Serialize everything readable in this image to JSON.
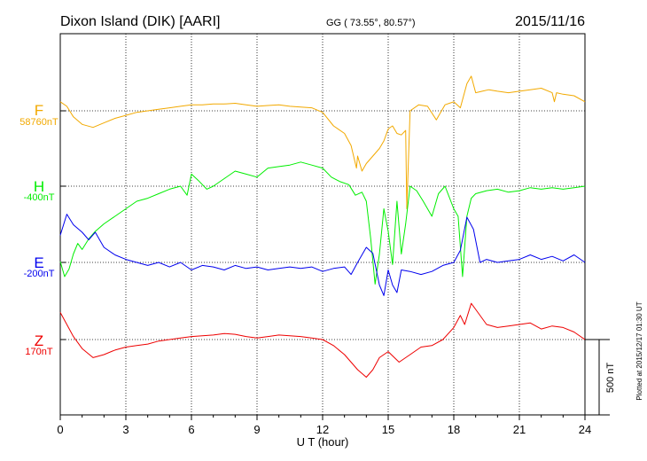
{
  "chart_data": {
    "type": "line",
    "title": "Dixon Island (DIK)  [AARI]",
    "coords": "GG ( 73.55°,  80.57°)",
    "date": "2015/11/16",
    "xlabel": "U T (hour)",
    "xlim": [
      0,
      24
    ],
    "xticks": [
      "0",
      "3",
      "6",
      "9",
      "12",
      "15",
      "18",
      "21",
      "24"
    ],
    "scale_label": "500 nT",
    "scale_nT": 500,
    "plotted_note": "Plotted at 2015/12/17 01:30 UT",
    "series": [
      {
        "name": "F",
        "baseline": "58760nT",
        "color": "#f2a900",
        "x": [
          0,
          0.3,
          0.6,
          1.0,
          1.5,
          2.0,
          2.5,
          3.0,
          3.5,
          4.0,
          4.5,
          5.0,
          5.5,
          6.0,
          6.5,
          7.0,
          7.5,
          8.0,
          8.5,
          9.0,
          9.5,
          10.0,
          10.5,
          11.0,
          11.5,
          12.0,
          12.5,
          13.0,
          13.3,
          13.55,
          13.6,
          13.8,
          14.0,
          14.3,
          14.6,
          14.8,
          15.0,
          15.2,
          15.4,
          15.6,
          15.8,
          15.85,
          16.0,
          16.4,
          16.8,
          17.2,
          17.6,
          18.0,
          18.3,
          18.6,
          18.8,
          19.0,
          19.3,
          19.6,
          20.0,
          20.5,
          21.0,
          21.5,
          22.0,
          22.5,
          22.6,
          22.7,
          23.0,
          23.5,
          24.0
        ],
        "y": [
          60,
          30,
          -40,
          -90,
          -110,
          -80,
          -50,
          -30,
          -10,
          0,
          10,
          20,
          30,
          40,
          40,
          45,
          45,
          50,
          40,
          30,
          35,
          40,
          30,
          25,
          20,
          -10,
          -100,
          -150,
          -230,
          -380,
          -300,
          -400,
          -350,
          -300,
          -250,
          -200,
          -120,
          -100,
          -150,
          -160,
          -130,
          -650,
          0,
          40,
          30,
          -60,
          40,
          60,
          20,
          180,
          230,
          120,
          130,
          140,
          130,
          120,
          130,
          140,
          150,
          120,
          60,
          120,
          110,
          100,
          60
        ]
      },
      {
        "name": "H",
        "baseline": "-400nT",
        "color": "#00ee00",
        "x": [
          0,
          0.2,
          0.4,
          0.6,
          0.8,
          1.0,
          1.3,
          1.6,
          2.0,
          2.5,
          3.0,
          3.5,
          4.0,
          4.5,
          5.0,
          5.5,
          5.8,
          6.0,
          6.3,
          6.7,
          7.0,
          7.5,
          8.0,
          8.5,
          9.0,
          9.5,
          10.0,
          10.5,
          11.0,
          11.5,
          12.0,
          12.4,
          12.8,
          13.2,
          13.5,
          13.8,
          14.0,
          14.2,
          14.4,
          14.6,
          14.8,
          15.0,
          15.2,
          15.4,
          15.6,
          15.8,
          16.0,
          16.3,
          16.6,
          17.0,
          17.3,
          17.6,
          18.0,
          18.2,
          18.4,
          18.6,
          18.8,
          19.0,
          19.5,
          20.0,
          20.5,
          21.0,
          21.5,
          22.0,
          22.5,
          23.0,
          23.5,
          24.0
        ],
        "y": [
          -500,
          -600,
          -550,
          -450,
          -380,
          -420,
          -350,
          -300,
          -250,
          -200,
          -150,
          -100,
          -80,
          -50,
          -20,
          0,
          -60,
          80,
          40,
          -20,
          0,
          50,
          100,
          80,
          60,
          120,
          130,
          140,
          160,
          140,
          120,
          60,
          30,
          10,
          -60,
          -40,
          -100,
          -350,
          -650,
          -450,
          -150,
          -300,
          -520,
          -100,
          -450,
          -250,
          0,
          -30,
          -100,
          -200,
          -50,
          0,
          -150,
          -200,
          -600,
          -200,
          -80,
          -50,
          -30,
          -20,
          -40,
          -30,
          -10,
          -20,
          -10,
          -20,
          -10,
          0
        ]
      },
      {
        "name": "E",
        "baseline": "-200nT",
        "color": "#0000ee",
        "x": [
          0,
          0.3,
          0.6,
          1.0,
          1.3,
          1.6,
          2.0,
          2.5,
          3.0,
          3.5,
          4.0,
          4.5,
          5.0,
          5.5,
          6.0,
          6.5,
          7.0,
          7.5,
          8.0,
          8.5,
          9.0,
          9.5,
          10.0,
          10.5,
          11.0,
          11.5,
          12.0,
          12.5,
          13.0,
          13.3,
          13.6,
          14.0,
          14.3,
          14.6,
          14.8,
          15.0,
          15.2,
          15.4,
          15.6,
          16.0,
          16.5,
          17.0,
          17.5,
          18.0,
          18.3,
          18.6,
          18.9,
          19.2,
          19.5,
          20.0,
          20.5,
          21.0,
          21.5,
          22.0,
          22.5,
          23.0,
          23.5,
          24.0
        ],
        "y": [
          180,
          320,
          250,
          200,
          150,
          200,
          100,
          50,
          20,
          0,
          -20,
          0,
          -30,
          0,
          -50,
          -20,
          -30,
          -50,
          -20,
          -40,
          -30,
          -50,
          -40,
          -30,
          -40,
          -30,
          -60,
          -40,
          -30,
          -80,
          0,
          100,
          60,
          -150,
          -220,
          -50,
          -150,
          -200,
          -50,
          -60,
          -80,
          -60,
          -20,
          0,
          80,
          300,
          220,
          0,
          20,
          0,
          10,
          20,
          50,
          20,
          40,
          10,
          50,
          0
        ]
      },
      {
        "name": "Z",
        "baseline": "170nT",
        "color": "#ee0000",
        "x": [
          0,
          0.3,
          0.6,
          1.0,
          1.5,
          2.0,
          2.5,
          3.0,
          3.5,
          4.0,
          4.5,
          5.0,
          5.5,
          6.0,
          6.5,
          7.0,
          7.5,
          8.0,
          8.5,
          9.0,
          9.5,
          10.0,
          10.5,
          11.0,
          11.5,
          12.0,
          12.5,
          13.0,
          13.3,
          13.6,
          14.0,
          14.3,
          14.6,
          15.0,
          15.5,
          16.0,
          16.5,
          17.0,
          17.5,
          18.0,
          18.3,
          18.5,
          18.8,
          19.0,
          19.5,
          20.0,
          20.5,
          21.0,
          21.5,
          22.0,
          22.5,
          23.0,
          23.5,
          24.0
        ],
        "y": [
          180,
          100,
          20,
          -60,
          -120,
          -100,
          -70,
          -50,
          -40,
          -30,
          -10,
          0,
          10,
          20,
          25,
          30,
          40,
          35,
          20,
          10,
          20,
          30,
          25,
          20,
          10,
          0,
          -40,
          -100,
          -150,
          -200,
          -250,
          -200,
          -120,
          -80,
          -150,
          -100,
          -50,
          -40,
          0,
          80,
          160,
          100,
          240,
          200,
          100,
          80,
          90,
          100,
          110,
          70,
          90,
          80,
          50,
          0
        ]
      }
    ]
  }
}
